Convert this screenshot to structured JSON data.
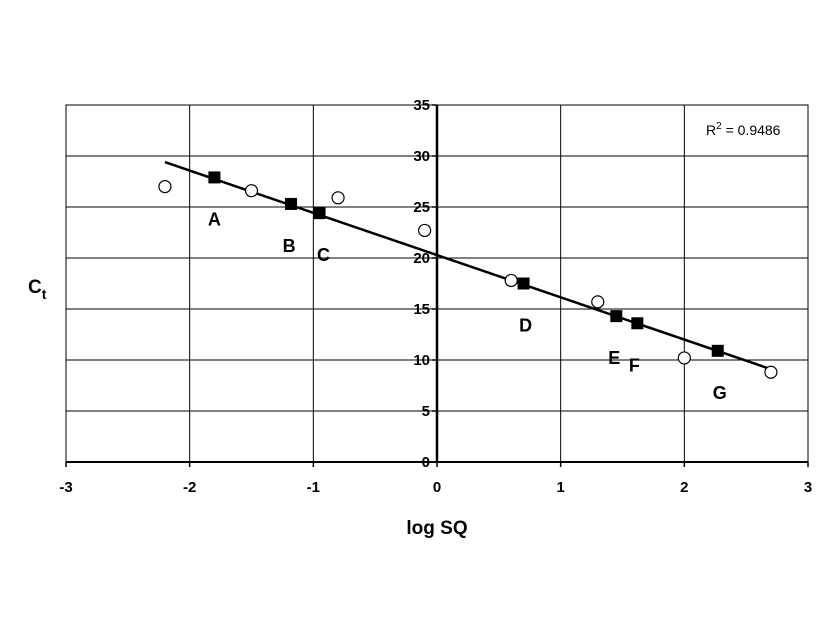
{
  "chart_data": {
    "type": "scatter",
    "xlabel": "log SQ",
    "ylabel": {
      "main": "C",
      "sub": "t"
    },
    "xlim": [
      -3,
      3
    ],
    "ylim": [
      0,
      35
    ],
    "x_ticks": [
      "-3",
      "-2",
      "-1",
      "0",
      "1",
      "2",
      "3"
    ],
    "y_ticks": [
      "0",
      "5",
      "10",
      "15",
      "20",
      "25",
      "30",
      "35"
    ],
    "grid": true,
    "annotation": {
      "prefix": "R",
      "sup": "2",
      "value": " = 0.9486"
    },
    "series": [
      {
        "marker": "filled-square",
        "points": [
          {
            "x": -1.8,
            "y": 27.9,
            "label": "A"
          },
          {
            "x": -1.18,
            "y": 25.3,
            "label": "B"
          },
          {
            "x": -0.95,
            "y": 24.4,
            "label": "C"
          },
          {
            "x": 0.7,
            "y": 17.5,
            "label": "D"
          },
          {
            "x": 1.45,
            "y": 14.3,
            "label": "E"
          },
          {
            "x": 1.62,
            "y": 13.6,
            "label": "F"
          },
          {
            "x": 2.27,
            "y": 10.9,
            "label": "G"
          }
        ]
      },
      {
        "marker": "open-circle",
        "points": [
          {
            "x": -2.2,
            "y": 27.0
          },
          {
            "x": -1.5,
            "y": 26.6
          },
          {
            "x": -0.8,
            "y": 25.9
          },
          {
            "x": -0.1,
            "y": 22.7
          },
          {
            "x": 0.6,
            "y": 17.8
          },
          {
            "x": 1.3,
            "y": 15.7
          },
          {
            "x": 2.0,
            "y": 10.2
          },
          {
            "x": 2.7,
            "y": 8.8
          }
        ]
      }
    ],
    "trendline": {
      "x": [
        -2.2,
        2.7
      ],
      "y": [
        29.4,
        9.1
      ]
    },
    "colors": {
      "axis": "#000000",
      "grid": "#000000",
      "marker": "#000000"
    }
  }
}
